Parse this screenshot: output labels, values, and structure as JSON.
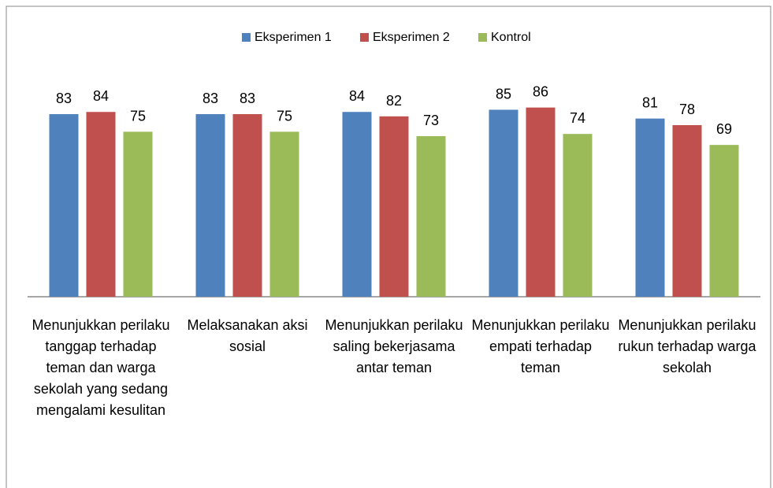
{
  "chart_data": {
    "type": "bar",
    "categories": [
      "Menunjukkan perilaku tanggap terhadap teman dan warga sekolah yang sedang mengalami kesulitan",
      "Melaksanakan aksi sosial",
      "Menunjukkan perilaku saling bekerjasama antar teman",
      "Menunjukkan perilaku empati terhadap teman",
      "Menunjukkan perilaku rukun terhadap warga sekolah"
    ],
    "series": [
      {
        "name": "Eksperimen 1",
        "color": "#4f81bd",
        "values": [
          83,
          83,
          84,
          85,
          81
        ]
      },
      {
        "name": "Eksperimen 2",
        "color": "#c0504d",
        "values": [
          84,
          83,
          82,
          86,
          78
        ]
      },
      {
        "name": "Kontrol",
        "color": "#9bbb59",
        "values": [
          75,
          75,
          73,
          74,
          69
        ]
      }
    ],
    "ylim": [
      0,
      100
    ],
    "legend": "top"
  }
}
